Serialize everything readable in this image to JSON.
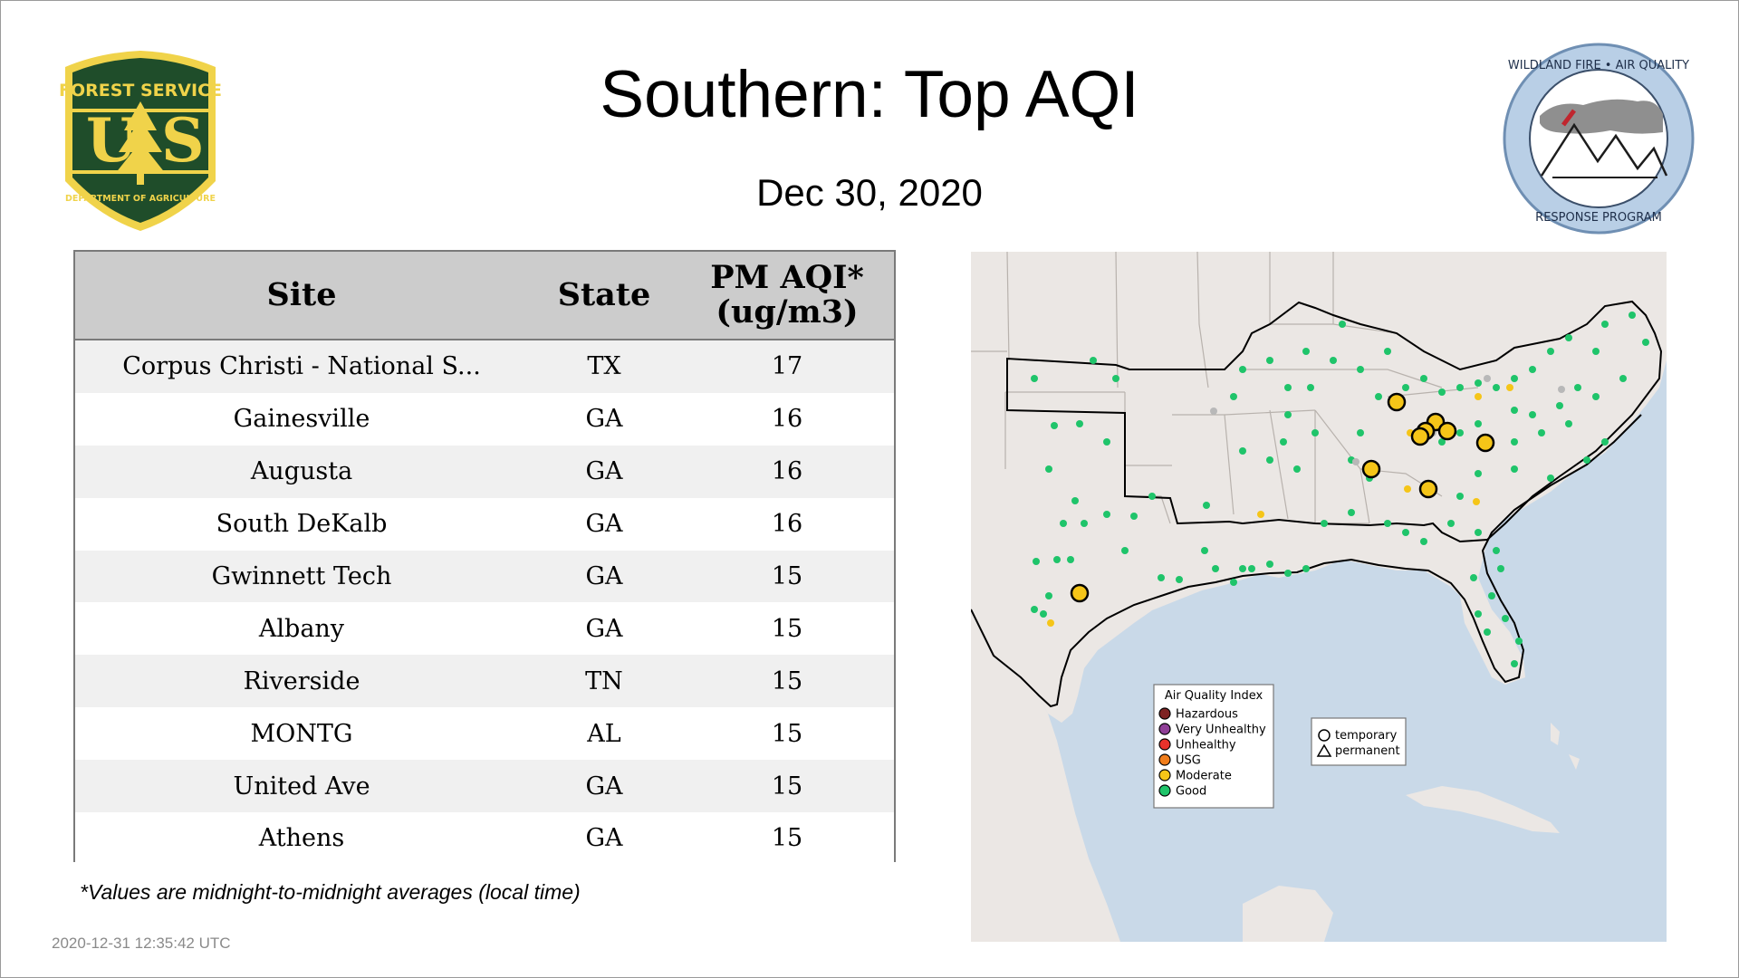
{
  "header": {
    "title": "Southern: Top AQI",
    "date": "Dec 30, 2020"
  },
  "logos": {
    "left": {
      "name": "forest-service-shield",
      "top_text": "FOREST SERVICE",
      "letters": "US",
      "bottom_text": "DEPARTMENT OF AGRICULTURE"
    },
    "right": {
      "name": "wildland-fire-air-quality-badge",
      "top_text": "WILDLAND FIRE • AIR QUALITY",
      "bottom_text": "RESPONSE PROGRAM"
    }
  },
  "table": {
    "headers": {
      "site": "Site",
      "state": "State",
      "value_line1": "PM AQI*",
      "value_line2": "(ug/m3)"
    },
    "rows": [
      {
        "site": "Corpus Christi - National S...",
        "state": "TX",
        "value": "17"
      },
      {
        "site": "Gainesville",
        "state": "GA",
        "value": "16"
      },
      {
        "site": "Augusta",
        "state": "GA",
        "value": "16"
      },
      {
        "site": "South DeKalb",
        "state": "GA",
        "value": "16"
      },
      {
        "site": "Gwinnett Tech",
        "state": "GA",
        "value": "15"
      },
      {
        "site": "Albany",
        "state": "GA",
        "value": "15"
      },
      {
        "site": "Riverside",
        "state": "TN",
        "value": "15"
      },
      {
        "site": "MONTG",
        "state": "AL",
        "value": "15"
      },
      {
        "site": "United Ave",
        "state": "GA",
        "value": "15"
      },
      {
        "site": "Athens",
        "state": "GA",
        "value": "15"
      }
    ]
  },
  "footnote": "*Values are midnight-to-midnight averages (local time)",
  "timestamp": "2020-12-31 12:35:42 UTC",
  "map": {
    "legend": {
      "title": "Air Quality Index",
      "items": [
        {
          "label": "Hazardous",
          "color": "#7e2323"
        },
        {
          "label": "Very Unhealthy",
          "color": "#8f3f97"
        },
        {
          "label": "Unhealthy",
          "color": "#e8322b"
        },
        {
          "label": "USG",
          "color": "#f07d1b"
        },
        {
          "label": "Moderate",
          "color": "#f5c518"
        },
        {
          "label": "Good",
          "color": "#1fc46a"
        }
      ]
    },
    "shape_legend": {
      "items": [
        {
          "label": "temporary",
          "shape": "circle"
        },
        {
          "label": "permanent",
          "shape": "triangle"
        }
      ]
    },
    "colors": {
      "water": "#c9d9e8",
      "land": "#ebe7e4",
      "good": "#1fc46a",
      "moderate": "#f5c518",
      "missing": "#b8b8b8"
    }
  }
}
